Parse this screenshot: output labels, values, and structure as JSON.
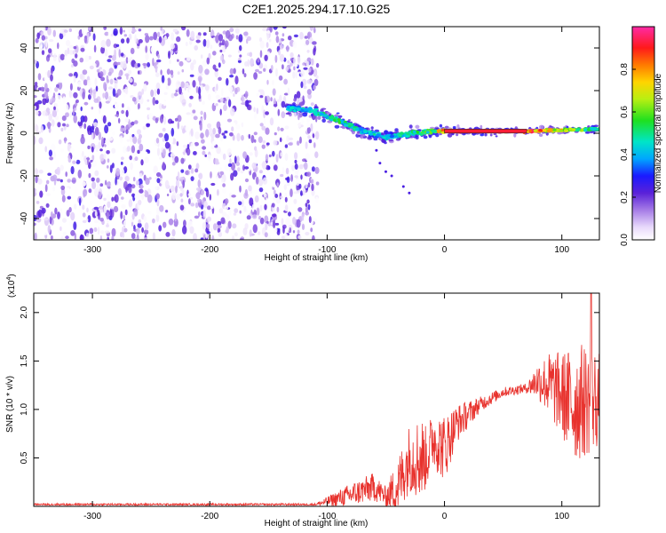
{
  "title": "C2E1.2025.294.17.10.G25",
  "chart_data": [
    {
      "type": "heatmap",
      "xlabel": "Height of straight line (km)",
      "ylabel": "Frequency (Hz)",
      "xlim": [
        -350,
        132
      ],
      "ylim": [
        -50,
        50
      ],
      "xticks": [
        -300,
        -200,
        -100,
        0,
        100
      ],
      "yticks": [
        -40,
        -20,
        0,
        20,
        40
      ],
      "colorbar": {
        "label": "Normalized spectral amplitude",
        "range": [
          0,
          1
        ],
        "ticks": [
          "0.0",
          "0.2",
          "0.4",
          "0.6",
          "0.8"
        ]
      },
      "noise_region_x": [
        -350,
        -108
      ],
      "features": [
        {
          "x": [
            -130,
            -110,
            -90,
            -70,
            -50,
            -30,
            -10,
            0,
            70,
            132
          ],
          "y": [
            12,
            10,
            6,
            1,
            -2,
            0,
            1,
            1,
            1,
            2
          ],
          "amplitude": [
            0.45,
            0.5,
            0.55,
            0.5,
            0.45,
            0.55,
            0.6,
            0.95,
            0.95,
            0.55
          ]
        }
      ],
      "grid": false
    },
    {
      "type": "line",
      "xlabel": "Height of straight line (km)",
      "ylabel": "SNR (10 * v/v)",
      "yscale_label": "(x10",
      "yscale_exp": "4",
      "xlim": [
        -350,
        132
      ],
      "ylim": [
        0,
        2.2
      ],
      "xticks": [
        -300,
        -200,
        -100,
        0,
        100
      ],
      "yticks": [
        0.5,
        1.0,
        1.5,
        2.0
      ],
      "yticklabels": [
        "0.5",
        "1.0",
        "1.5",
        "2.0"
      ],
      "series_color": "#e8322d",
      "envelope": {
        "x": [
          -350,
          -110,
          -100,
          -80,
          -60,
          -50,
          -40,
          -30,
          -20,
          -15,
          -10,
          0,
          10,
          30,
          50,
          70,
          80,
          90,
          100,
          110,
          120,
          132
        ],
        "mean": [
          0.02,
          0.02,
          0.05,
          0.12,
          0.2,
          0.1,
          0.2,
          0.5,
          0.5,
          0.5,
          0.7,
          0.6,
          0.85,
          1.05,
          1.18,
          1.22,
          1.3,
          1.25,
          1.15,
          1.05,
          1.1,
          1.1
        ],
        "spread": [
          0.01,
          0.01,
          0.05,
          0.12,
          0.15,
          0.1,
          0.3,
          0.35,
          0.45,
          0.3,
          0.3,
          0.35,
          0.2,
          0.08,
          0.05,
          0.05,
          0.2,
          0.35,
          0.45,
          0.6,
          0.6,
          0.5
        ]
      },
      "peak": {
        "x": 125,
        "y": 2.2
      },
      "grid": false
    }
  ]
}
